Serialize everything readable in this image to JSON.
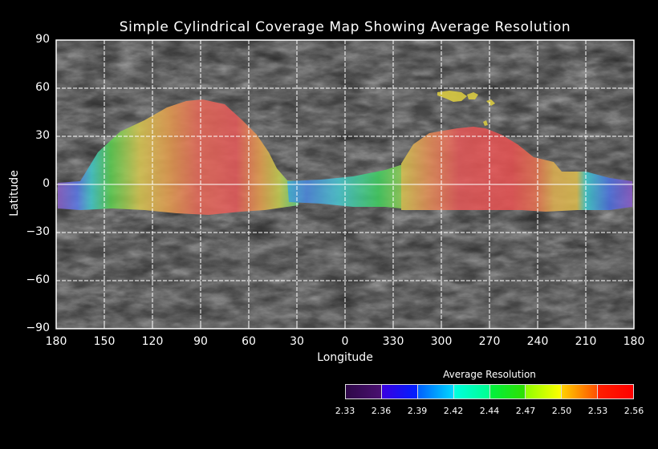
{
  "title": "Simple Cylindrical Coverage Map Showing Average Resolution",
  "axes": {
    "x_title": "Longitude",
    "y_title": "Latitude",
    "x_ticks": [
      "180",
      "150",
      "120",
      "90",
      "60",
      "30",
      "0",
      "330",
      "300",
      "270",
      "240",
      "210",
      "180"
    ],
    "y_ticks": [
      "90",
      "60",
      "30",
      "0",
      "−30",
      "−60",
      "−90"
    ]
  },
  "map": {
    "projection": "Simple Cylindrical",
    "longitude_range": [
      180,
      -180
    ],
    "latitude_range": [
      -90,
      90
    ],
    "grid_step_degrees": 30,
    "base_color": "#5a5a5a",
    "coverage_regions": [
      {
        "name": "western-lobe",
        "center_lon": 90,
        "peak_lat": 53,
        "min_lat": -18,
        "lon_extent": [
          170,
          35
        ],
        "peak_value": 2.55
      },
      {
        "name": "eastern-lobe",
        "center_lon": 285,
        "peak_lat": 41,
        "min_lat": -17,
        "lon_extent": [
          350,
          180
        ],
        "peak_value": 2.56
      },
      {
        "name": "equatorial-band",
        "lat_extent": [
          -15,
          5
        ],
        "lon_extent": [
          35,
          350
        ],
        "value_range": [
          2.38,
          2.48
        ]
      },
      {
        "name": "north-patches",
        "lat_extent": [
          38,
          58
        ],
        "lon_extent": [
          300,
          270
        ],
        "value": 2.5
      }
    ]
  },
  "legend": {
    "title": "Average Resolution",
    "ticks": [
      "2.33",
      "2.36",
      "2.39",
      "2.42",
      "2.44",
      "2.47",
      "2.50",
      "2.53",
      "2.56"
    ],
    "colors": [
      "#3a0a5a",
      "#1800ff",
      "#00a0ff",
      "#00ffc0",
      "#00e020",
      "#c8ff00",
      "#ffb000",
      "#ff1000"
    ]
  },
  "chart_data": {
    "type": "heatmap",
    "title": "Simple Cylindrical Coverage Map Showing Average Resolution",
    "xlabel": "Longitude",
    "ylabel": "Latitude",
    "xlim": [
      180,
      -180
    ],
    "ylim": [
      -90,
      90
    ],
    "colorbar": {
      "label": "Average Resolution",
      "range": [
        2.33,
        2.56
      ],
      "ticks": [
        2.33,
        2.36,
        2.39,
        2.42,
        2.44,
        2.47,
        2.5,
        2.53,
        2.56
      ]
    },
    "grid": true
  }
}
